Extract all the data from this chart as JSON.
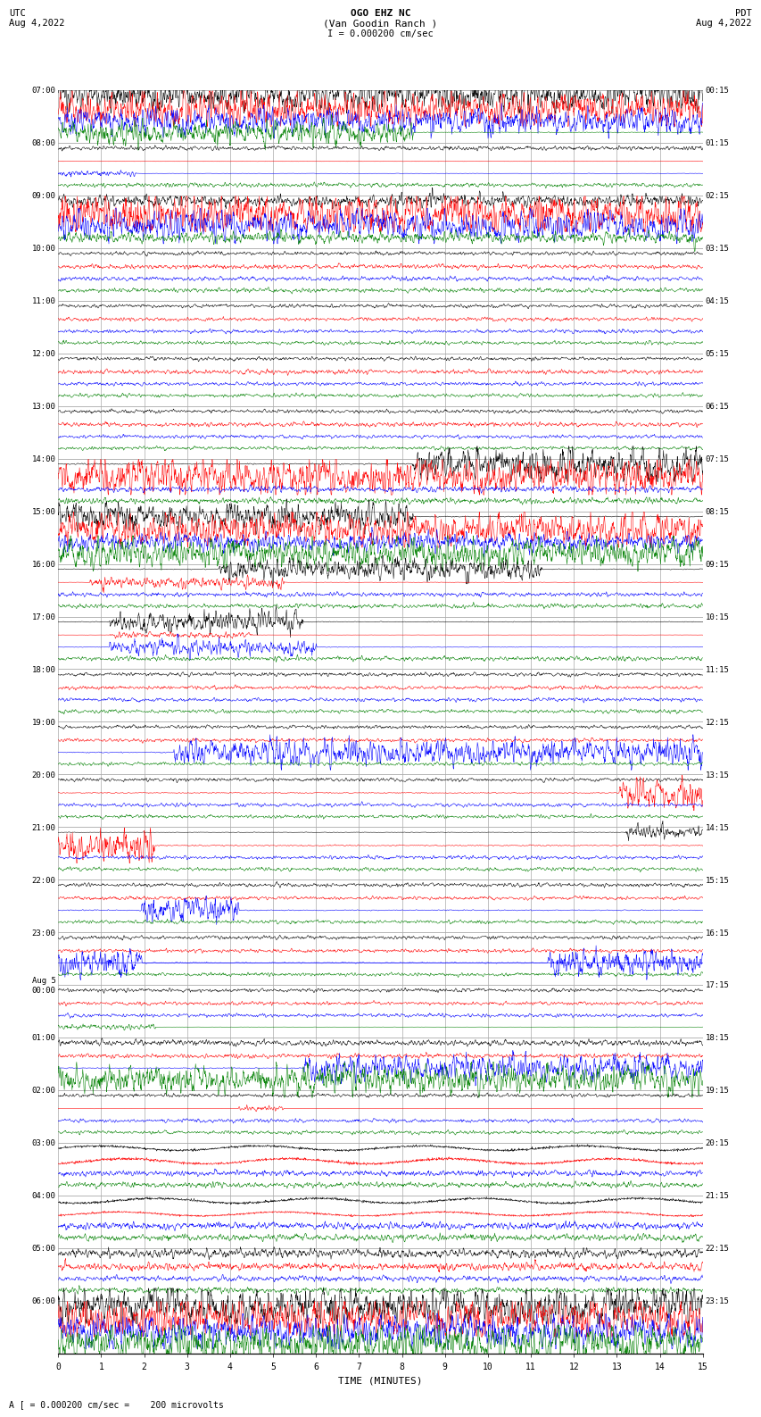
{
  "title_line1": "OGO EHZ NC",
  "title_line2": "(Van Goodin Ranch )",
  "title_line3": "I = 0.000200 cm/sec",
  "left_label_top": "UTC",
  "left_label_date": "Aug 4,2022",
  "right_label_top": "PDT",
  "right_label_date": "Aug 4,2022",
  "xlabel": "TIME (MINUTES)",
  "bottom_note": "A [ = 0.000200 cm/sec =    200 microvolts",
  "background_color": "#ffffff",
  "plot_bg_color": "#ffffff",
  "grid_color": "#aaaaaa",
  "utc_labels": [
    "07:00",
    "08:00",
    "09:00",
    "10:00",
    "11:00",
    "12:00",
    "13:00",
    "14:00",
    "15:00",
    "16:00",
    "17:00",
    "18:00",
    "19:00",
    "20:00",
    "21:00",
    "22:00",
    "23:00",
    "Aug 5\n00:00",
    "01:00",
    "02:00",
    "03:00",
    "04:00",
    "05:00",
    "06:00"
  ],
  "pdt_labels": [
    "00:15",
    "01:15",
    "02:15",
    "03:15",
    "04:15",
    "05:15",
    "06:15",
    "07:15",
    "08:15",
    "09:15",
    "10:15",
    "11:15",
    "12:15",
    "13:15",
    "14:15",
    "15:15",
    "16:15",
    "17:15",
    "18:15",
    "19:15",
    "20:15",
    "21:15",
    "22:15",
    "23:15"
  ],
  "n_rows": 24,
  "x_min": 0,
  "x_max": 15,
  "x_ticks": [
    0,
    1,
    2,
    3,
    4,
    5,
    6,
    7,
    8,
    9,
    10,
    11,
    12,
    13,
    14,
    15
  ],
  "colors": {
    "black": "#000000",
    "red": "#ff0000",
    "blue": "#0000ff",
    "green": "#008000"
  },
  "seed": 42
}
